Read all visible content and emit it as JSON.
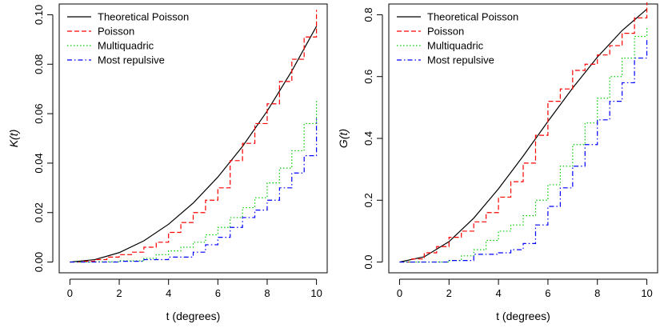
{
  "chart_data": [
    {
      "type": "line",
      "xlabel": "t (degrees)",
      "ylabel": "K(t)",
      "xlim": [
        0,
        10
      ],
      "ylim": [
        0,
        0.1
      ],
      "xticks": [
        0,
        2,
        4,
        6,
        8,
        10
      ],
      "yticks": [
        0.0,
        0.02,
        0.04,
        0.06,
        0.08,
        0.1
      ],
      "ytick_labels": [
        "0.00",
        "0.02",
        "0.04",
        "0.06",
        "0.08",
        "0.10"
      ],
      "grid": false,
      "legend_position": "top-left",
      "series": [
        {
          "name": "Theoretical Poisson",
          "color": "#000000",
          "dash": "solid",
          "step": false,
          "x": [
            0,
            1,
            2,
            3,
            4,
            5,
            6,
            7,
            8,
            9,
            10
          ],
          "values": [
            0.0,
            0.00096,
            0.00382,
            0.0086,
            0.01528,
            0.02387,
            0.03436,
            0.04676,
            0.06106,
            0.07727,
            0.09536
          ]
        },
        {
          "name": "Poisson",
          "color": "#ff0000",
          "dash": "dashed",
          "step": true,
          "x": [
            0,
            0.5,
            1,
            1.5,
            2,
            2.5,
            3,
            3.5,
            4,
            4.5,
            5,
            5.5,
            6,
            6.5,
            7,
            7.5,
            8,
            8.5,
            9,
            9.5,
            10
          ],
          "values": [
            0,
            0.0003,
            0.001,
            0.002,
            0.003,
            0.004,
            0.006,
            0.008,
            0.012,
            0.016,
            0.02,
            0.025,
            0.03,
            0.041,
            0.048,
            0.056,
            0.064,
            0.073,
            0.082,
            0.091,
            0.102
          ]
        },
        {
          "name": "Multiquadric",
          "color": "#00cc00",
          "dash": "dotted",
          "step": true,
          "x": [
            0,
            1,
            2,
            3,
            3.5,
            4,
            4.5,
            5,
            5.5,
            6,
            6.5,
            7,
            7.5,
            8,
            8.5,
            9,
            9.5,
            10
          ],
          "values": [
            0,
            0.0001,
            0.0005,
            0.0015,
            0.003,
            0.0045,
            0.006,
            0.008,
            0.011,
            0.014,
            0.018,
            0.022,
            0.026,
            0.032,
            0.038,
            0.045,
            0.056,
            0.066
          ]
        },
        {
          "name": "Most repulsive",
          "color": "#0000ff",
          "dash": "dashdot",
          "step": true,
          "x": [
            0,
            1,
            2,
            3,
            4,
            5,
            5.5,
            6,
            6.5,
            7,
            7.5,
            8,
            8.5,
            9,
            9.5,
            10
          ],
          "values": [
            0,
            0,
            0.0003,
            0.001,
            0.002,
            0.004,
            0.007,
            0.01,
            0.014,
            0.018,
            0.021,
            0.025,
            0.03,
            0.036,
            0.043,
            0.058
          ]
        }
      ]
    },
    {
      "type": "line",
      "xlabel": "t (degrees)",
      "ylabel": "G(t)",
      "xlim": [
        0,
        10
      ],
      "ylim": [
        0,
        0.8
      ],
      "xticks": [
        0,
        2,
        4,
        6,
        8,
        10
      ],
      "yticks": [
        0.0,
        0.2,
        0.4,
        0.6,
        0.8
      ],
      "ytick_labels": [
        "0.0",
        "0.2",
        "0.4",
        "0.6",
        "0.8"
      ],
      "grid": false,
      "legend_position": "top-left",
      "series": [
        {
          "name": "Theoretical Poisson",
          "color": "#000000",
          "dash": "solid",
          "step": false,
          "x": [
            0,
            1,
            2,
            3,
            4,
            5,
            6,
            7,
            8,
            9,
            10
          ],
          "values": [
            0.0,
            0.017,
            0.066,
            0.142,
            0.237,
            0.343,
            0.455,
            0.563,
            0.663,
            0.749,
            0.818
          ]
        },
        {
          "name": "Poisson",
          "color": "#ff0000",
          "dash": "dashed",
          "step": true,
          "x": [
            0,
            0.5,
            1,
            1.5,
            2,
            2.5,
            3,
            3.5,
            4,
            4.5,
            5,
            5.5,
            6,
            6.5,
            7,
            7.5,
            8,
            8.5,
            9,
            9.5,
            10
          ],
          "values": [
            0,
            0.01,
            0.03,
            0.05,
            0.08,
            0.1,
            0.13,
            0.16,
            0.21,
            0.26,
            0.32,
            0.41,
            0.52,
            0.56,
            0.62,
            0.64,
            0.67,
            0.7,
            0.74,
            0.79,
            0.84
          ]
        },
        {
          "name": "Multiquadric",
          "color": "#00cc00",
          "dash": "dotted",
          "step": true,
          "x": [
            0,
            2,
            2.5,
            3,
            3.5,
            4,
            4.5,
            5,
            5.5,
            6,
            6.5,
            7,
            7.5,
            8,
            8.5,
            9,
            9.5,
            10
          ],
          "values": [
            0,
            0.005,
            0.02,
            0.04,
            0.07,
            0.1,
            0.12,
            0.15,
            0.2,
            0.25,
            0.31,
            0.38,
            0.45,
            0.53,
            0.6,
            0.66,
            0.73,
            0.76
          ]
        },
        {
          "name": "Most repulsive",
          "color": "#0000ff",
          "dash": "dashdot",
          "step": true,
          "x": [
            0,
            2,
            3,
            4,
            4.5,
            5,
            5.5,
            6,
            6.5,
            7,
            7.5,
            8,
            8.5,
            9,
            9.5,
            10
          ],
          "values": [
            0,
            0.005,
            0.025,
            0.03,
            0.04,
            0.06,
            0.12,
            0.18,
            0.24,
            0.31,
            0.38,
            0.46,
            0.52,
            0.58,
            0.66,
            0.72
          ]
        }
      ]
    }
  ]
}
